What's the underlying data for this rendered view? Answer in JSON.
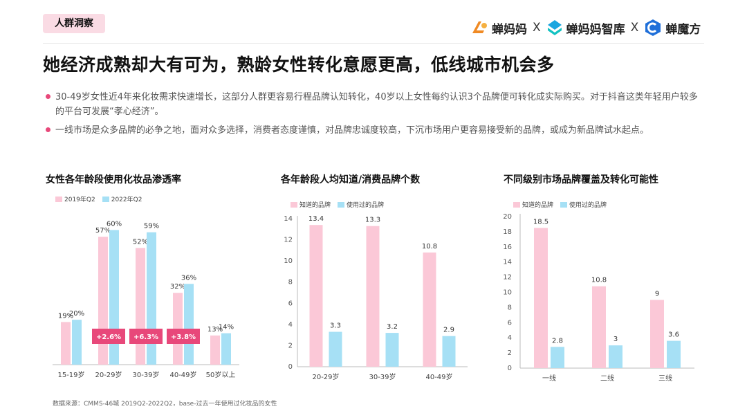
{
  "header": {
    "tag": "人群洞察",
    "brands": [
      {
        "name": "蝉妈妈",
        "icon": "chanmama-logo-icon",
        "color": "#f08a24"
      },
      {
        "name": "蝉妈妈智库",
        "icon": "chanmama-zhiku-logo-icon",
        "color": "#1aa6e0"
      },
      {
        "name": "蝉魔方",
        "icon": "chanmofang-logo-icon",
        "color": "#1f6fd9"
      }
    ],
    "separator": "X"
  },
  "headline": "她经济成熟却大有可为，熟龄女性转化意愿更高，低线城市机会多",
  "bullets": [
    "30-49岁女性近4年来化妆需求快速增长，这部分人群更容易行程品牌认知转化，40岁以上女性每约认识3个品牌便可转化成实际购买。对于抖音这类年轻用户较多的平台可发展“孝心经济”。",
    "一线市场是众多品牌的必争之地，面对众多选择，消费者态度谨慎，对品牌忠诚度较高，下沉市场用户更容易接受新的品牌，或成为新品牌试水起点。"
  ],
  "colors": {
    "pink": "#fbc8d7",
    "blue": "#a6e0f5",
    "accent": "#e8487a",
    "axis": "#bbbbbb"
  },
  "chart_data": [
    {
      "type": "bar",
      "title": "女性各年龄段使用化妆品渗透率",
      "categories": [
        "15-19岁",
        "20-29岁",
        "30-39岁",
        "40-49岁",
        "50岁以上"
      ],
      "series": [
        {
          "name": "2019年Q2",
          "values": [
            19,
            57,
            52,
            32,
            13
          ],
          "labels": [
            "19%",
            "57%",
            "52%",
            "32%",
            "13%"
          ]
        },
        {
          "name": "2022年Q2",
          "values": [
            20,
            60,
            59,
            36,
            14
          ],
          "labels": [
            "20%",
            "60%",
            "59%",
            "36%",
            "14%"
          ]
        }
      ],
      "annotations": [
        {
          "category": "20-29岁",
          "text": "+2.6%"
        },
        {
          "category": "30-39岁",
          "text": "+6.3%"
        },
        {
          "category": "40-49岁",
          "text": "+3.8%"
        }
      ],
      "ylim": [
        0,
        70
      ],
      "grid": false,
      "y_axis_visible": false,
      "legend": "top-left"
    },
    {
      "type": "bar",
      "title": "各年龄段人均知道/消费品牌个数",
      "categories": [
        "20-29岁",
        "30-39岁",
        "40-49岁"
      ],
      "series": [
        {
          "name": "知道的品牌",
          "values": [
            13.4,
            13.3,
            10.8
          ],
          "labels": [
            "13.4",
            "13.3",
            "10.8"
          ]
        },
        {
          "name": "使用过的品牌",
          "values": [
            3.3,
            3.2,
            2.9
          ],
          "labels": [
            "3.3",
            "3.2",
            "2.9"
          ]
        }
      ],
      "yticks": [
        "0",
        "2",
        "4",
        "6",
        "8",
        "10",
        "12",
        "14"
      ],
      "ylim": [
        0,
        14
      ],
      "grid": false,
      "legend": "top-left"
    },
    {
      "type": "bar",
      "title": "不同级别市场品牌覆盖及转化可能性",
      "categories": [
        "一线",
        "二线",
        "三线"
      ],
      "series": [
        {
          "name": "知道的品牌",
          "values": [
            18.5,
            10.8,
            9
          ],
          "labels": [
            "18.5",
            "10.8",
            "9"
          ]
        },
        {
          "name": "使用过的品牌",
          "values": [
            2.8,
            3,
            3.6
          ],
          "labels": [
            "2.8",
            "3",
            "3.6"
          ]
        }
      ],
      "yticks": [
        "0",
        "2",
        "4",
        "6",
        "8",
        "10",
        "12",
        "14",
        "16",
        "18",
        "20"
      ],
      "ylim": [
        0,
        20
      ],
      "grid": false,
      "legend": "top-left"
    }
  ],
  "source": "数据来源：CMMS-46城 2019Q2-2022Q2，base-过去一年使用过化妆品的女性"
}
